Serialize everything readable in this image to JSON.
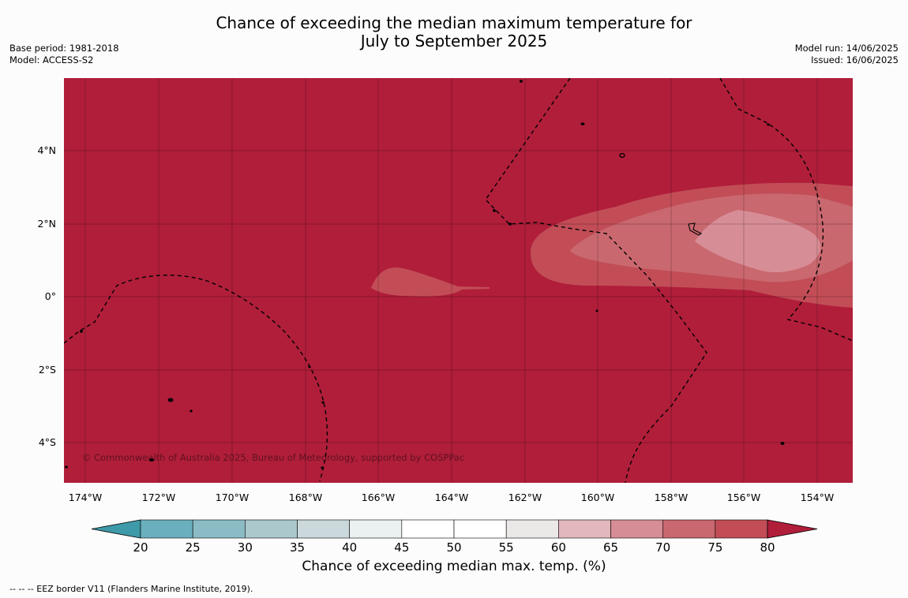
{
  "title_line1": "Chance of exceeding the median maximum temperature for",
  "title_line2": "July to September 2025",
  "meta_left": {
    "base_period": "Base period: 1981-2018",
    "model": "Model: ACCESS-S2"
  },
  "meta_right": {
    "model_run": "Model run: 14/06/2025",
    "issued": "Issued: 16/06/2025"
  },
  "copyright": "© Commonwealth of Australia 2025, Bureau of Meteorology, supported by COSPPac",
  "lon_ticks": [
    "174°W",
    "172°W",
    "170°W",
    "168°W",
    "166°W",
    "164°W",
    "162°W",
    "160°W",
    "158°W",
    "156°W",
    "154°W"
  ],
  "lat_ticks": [
    "4°N",
    "2°N",
    "0°",
    "2°S",
    "4°S"
  ],
  "colorbar": {
    "label": "Chance of exceeding median max. temp. (%)",
    "ticks": [
      "20",
      "25",
      "30",
      "35",
      "40",
      "45",
      "50",
      "55",
      "60",
      "65",
      "70",
      "75",
      "80"
    ],
    "colors": [
      "#3e9aa8",
      "#6aafbd",
      "#8bbcc6",
      "#abc8cd",
      "#cbd9dc",
      "#ebf0f1",
      "#ffffff",
      "#ffffff",
      "#ebe8e8",
      "#e2b8bd",
      "#d78d96",
      "#c9686f",
      "#c24d57",
      "#b01e3a"
    ]
  },
  "footnote": "--  --  -- EEZ border V11 (Flanders Marine Institute, 2019).",
  "legend_levels": {
    "base": "#b01e3a",
    "l75": "#c24d57",
    "l70": "#c9686f",
    "l65": "#d78d96"
  }
}
